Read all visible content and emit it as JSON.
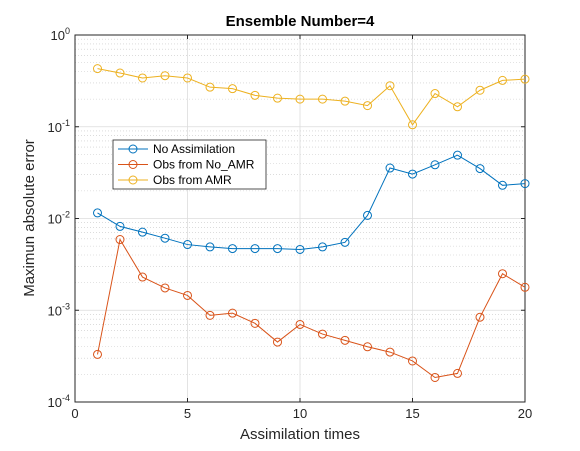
{
  "chart_data": {
    "type": "line",
    "title": "Ensemble Number=4",
    "xlabel": "Assimilation times",
    "ylabel": "Maximun absolute error",
    "xlim": [
      0,
      20
    ],
    "ylim": [
      0.0001,
      1
    ],
    "yscale": "log",
    "grid": true,
    "minor_grid": true,
    "legend_position": "upper-left",
    "x_ticks": [
      0,
      5,
      10,
      15,
      20
    ],
    "y_ticks": [
      {
        "value": 0.0001,
        "base": "10",
        "exp": "-4"
      },
      {
        "value": 0.001,
        "base": "10",
        "exp": "-3"
      },
      {
        "value": 0.01,
        "base": "10",
        "exp": "-2"
      },
      {
        "value": 0.1,
        "base": "10",
        "exp": "-1"
      },
      {
        "value": 1,
        "base": "10",
        "exp": "0"
      }
    ],
    "x": [
      1,
      2,
      3,
      4,
      5,
      6,
      7,
      8,
      9,
      10,
      11,
      12,
      13,
      14,
      15,
      16,
      17,
      18,
      19,
      20
    ],
    "series": [
      {
        "name": "No Assimilation",
        "color": "#0072BD",
        "marker": "circle",
        "values": [
          0.0115,
          0.0082,
          0.0071,
          0.0061,
          0.0052,
          0.0049,
          0.0047,
          0.0047,
          0.0047,
          0.0046,
          0.0049,
          0.0055,
          0.0108,
          0.0355,
          0.0305,
          0.0385,
          0.049,
          0.035,
          0.023,
          0.024
        ]
      },
      {
        "name": "Obs from No_AMR",
        "color": "#D95319",
        "marker": "circle",
        "values": [
          0.00033,
          0.0059,
          0.0023,
          0.00175,
          0.00145,
          0.00088,
          0.00093,
          0.00072,
          0.00045,
          0.0007,
          0.00055,
          0.00047,
          0.0004,
          0.00035,
          0.00028,
          0.000185,
          0.000205,
          0.00084,
          0.0025,
          0.00178
        ]
      },
      {
        "name": "Obs from AMR",
        "color": "#EDB120",
        "marker": "circle",
        "values": [
          0.43,
          0.385,
          0.34,
          0.36,
          0.34,
          0.27,
          0.26,
          0.22,
          0.205,
          0.2,
          0.2,
          0.19,
          0.17,
          0.28,
          0.105,
          0.23,
          0.165,
          0.25,
          0.32,
          0.33
        ]
      }
    ]
  }
}
